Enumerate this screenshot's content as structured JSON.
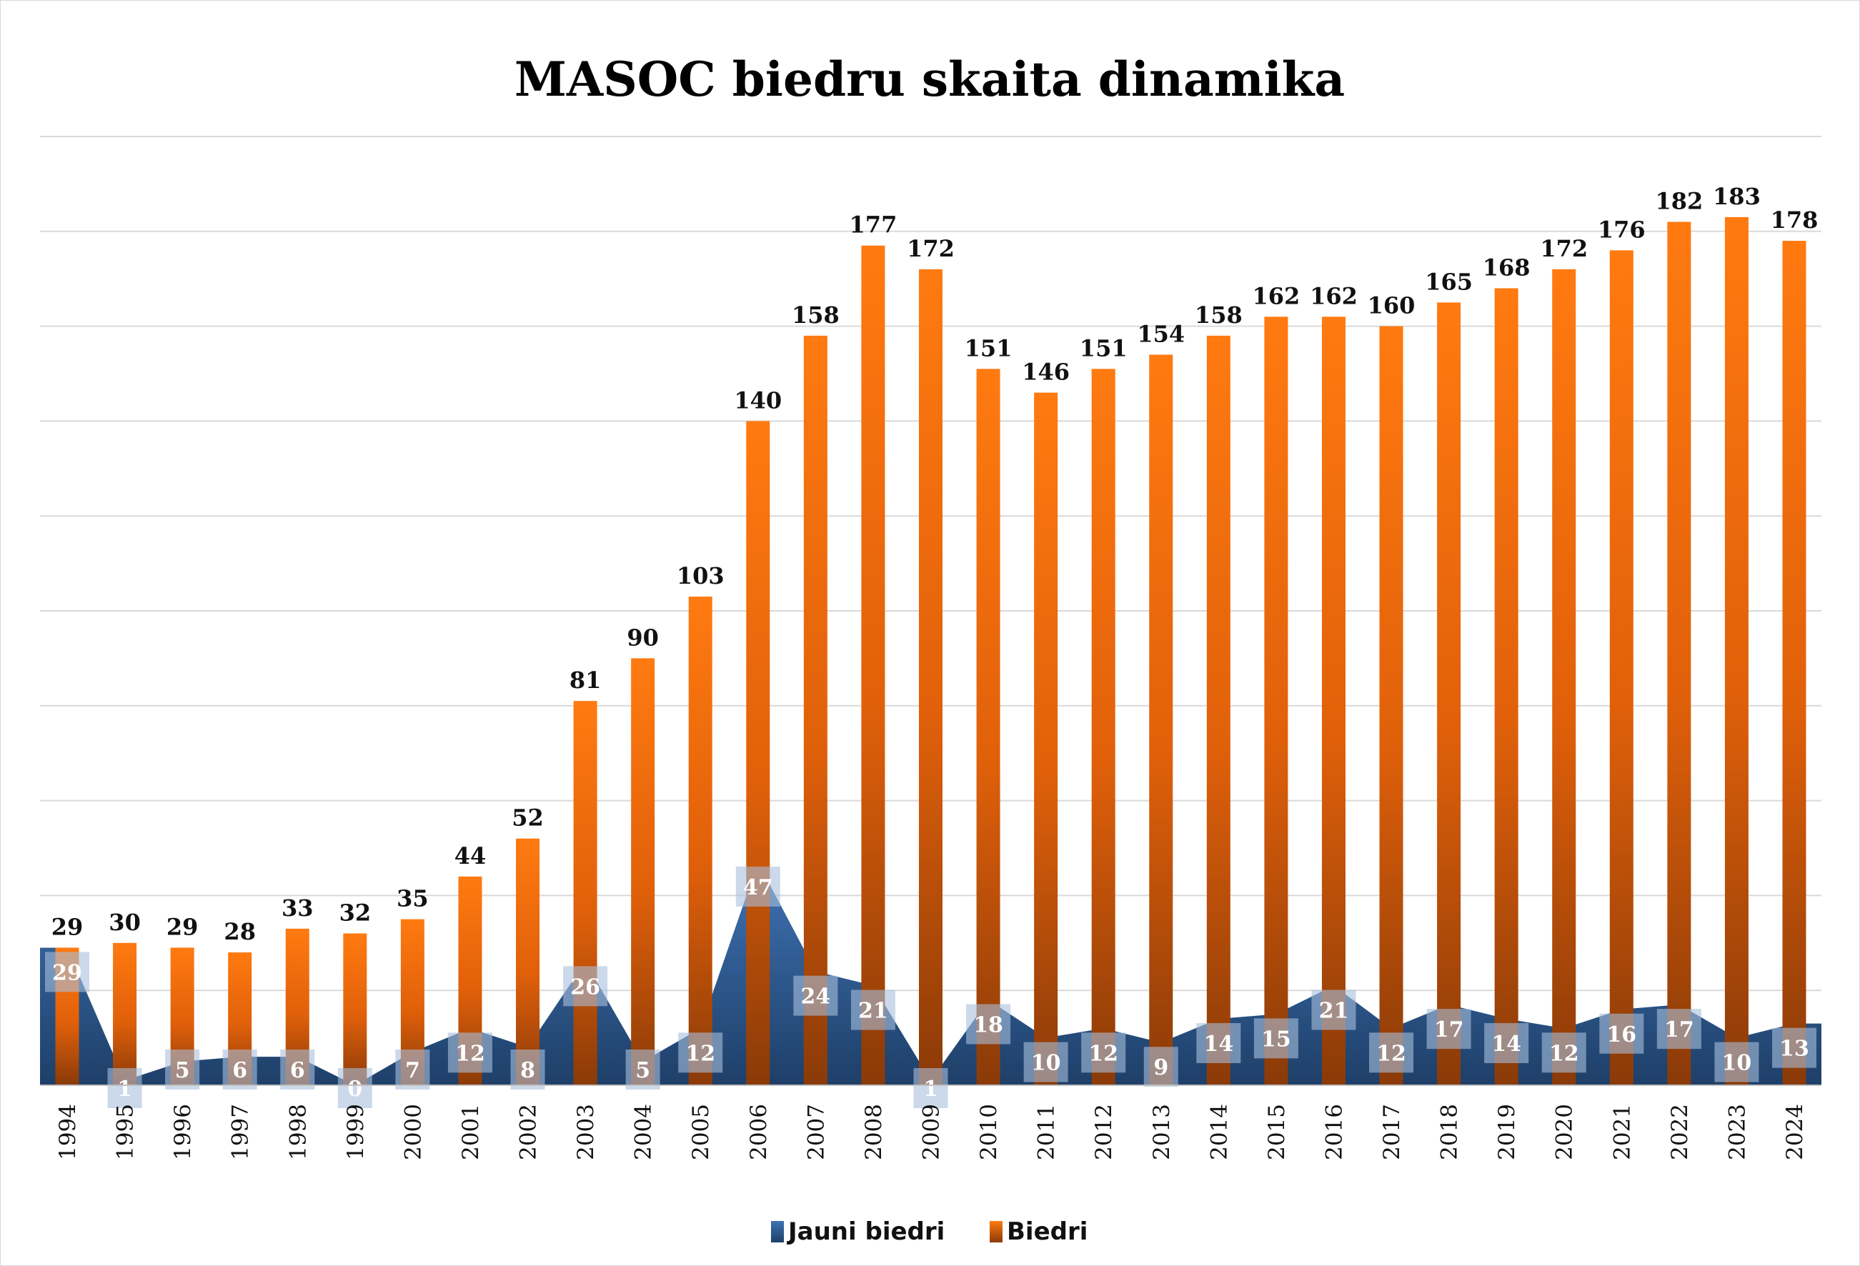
{
  "chart_data": {
    "type": "bar",
    "title": "MASOC biedru skaita dinamika",
    "xlabel": "",
    "ylabel": "",
    "ylim": [
      0,
      200
    ],
    "grid": true,
    "legend_position": "bottom",
    "categories": [
      "1994",
      "1995",
      "1996",
      "1997",
      "1998",
      "1999",
      "2000",
      "2001",
      "2002",
      "2003",
      "2004",
      "2005",
      "2006",
      "2007",
      "2008",
      "2009",
      "2010",
      "2011",
      "2012",
      "2013",
      "2014",
      "2015",
      "2016",
      "2017",
      "2018",
      "2019",
      "2020",
      "2021",
      "2022",
      "2023",
      "2024"
    ],
    "series": [
      {
        "name": "Jauni biedri",
        "type": "area",
        "color": "#2e5c93",
        "values": [
          29,
          1,
          5,
          6,
          6,
          0,
          7,
          12,
          8,
          26,
          5,
          12,
          47,
          24,
          21,
          1,
          18,
          10,
          12,
          9,
          14,
          15,
          21,
          12,
          17,
          14,
          12,
          16,
          17,
          10,
          13
        ]
      },
      {
        "name": "Biedri",
        "type": "bar",
        "color": "#f07010",
        "values": [
          29,
          30,
          29,
          28,
          33,
          32,
          35,
          44,
          52,
          81,
          90,
          103,
          140,
          158,
          177,
          172,
          151,
          146,
          151,
          154,
          158,
          162,
          162,
          160,
          165,
          168,
          172,
          176,
          182,
          183,
          178
        ]
      }
    ]
  }
}
